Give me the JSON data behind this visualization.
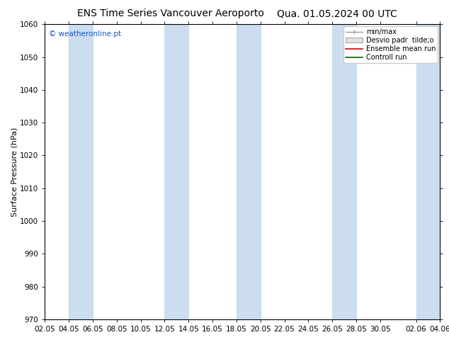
{
  "title_left": "ENS Time Series Vancouver Aeroporto",
  "title_right": "Qua. 01.05.2024 00 UTC",
  "ylabel": "Surface Pressure (hPa)",
  "ylim": [
    970,
    1060
  ],
  "yticks": [
    970,
    980,
    990,
    1000,
    1010,
    1020,
    1030,
    1040,
    1050,
    1060
  ],
  "xtick_labels": [
    "02.05",
    "04.05",
    "06.05",
    "08.05",
    "10.05",
    "12.05",
    "14.05",
    "16.05",
    "18.05",
    "20.05",
    "22.05",
    "24.05",
    "26.05",
    "28.05",
    "30.05",
    "02.06",
    "04.06"
  ],
  "watermark": "© weatheronline.pt",
  "legend_labels": [
    "min/max",
    "Desvio padr  tilde;o",
    "Ensemble mean run",
    "Controll run"
  ],
  "bg_color": "#ffffff",
  "band_color": "#ccddf0",
  "band_alpha": 0.55,
  "title_fontsize": 10,
  "tick_fontsize": 7.5,
  "ylabel_fontsize": 8,
  "watermark_color": "#1155cc"
}
